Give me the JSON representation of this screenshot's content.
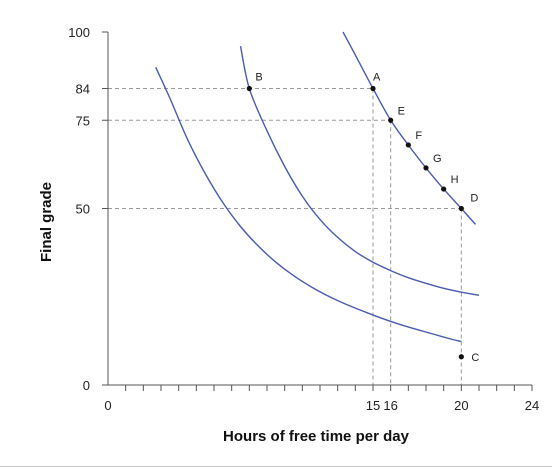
{
  "chart_data": {
    "type": "line",
    "title": "",
    "xlabel": "Hours of free time per day",
    "ylabel": "Final grade",
    "xlim": [
      0,
      24
    ],
    "ylim": [
      0,
      100
    ],
    "x_ticks": [
      0,
      15,
      16,
      20,
      24
    ],
    "x_tick_labels": [
      "0",
      "15",
      "16",
      "20",
      "24"
    ],
    "x_minor_ticks": [
      1,
      2,
      3,
      4,
      5,
      6,
      7,
      8,
      9,
      10,
      11,
      12,
      13,
      14,
      15,
      16,
      17,
      18,
      19,
      20,
      21,
      22,
      23,
      24
    ],
    "y_ticks": [
      0,
      50,
      75,
      84,
      100
    ],
    "y_tick_labels": [
      "0",
      "50",
      "75",
      "84",
      "100"
    ],
    "grid": false,
    "line_color": "#4a5bb0",
    "guide_color": "#9a9a9a",
    "series": [
      {
        "x": [
          2.7,
          3.5,
          4.5,
          5.5,
          6.5,
          7.5,
          8.5,
          9.5,
          10.5,
          11.5,
          12.5,
          13.5,
          14.5,
          15.5,
          16.5,
          17.5,
          18.5,
          19.5,
          20.0
        ],
        "y": [
          90.0,
          81.3,
          69.6,
          59.9,
          51.7,
          44.9,
          39.4,
          34.8,
          31.0,
          27.8,
          25.1,
          22.8,
          20.8,
          18.9,
          17.2,
          15.7,
          14.3,
          12.9,
          12.3
        ]
      },
      {
        "x": [
          7.5,
          8.0,
          9.0,
          10.0,
          11.0,
          12.0,
          13.0,
          14.0,
          15.0,
          16.0,
          17.0,
          18.0,
          19.0,
          20.0,
          21.0
        ],
        "y": [
          96.0,
          84.0,
          72.0,
          61.9,
          53.5,
          46.9,
          41.8,
          37.8,
          34.8,
          32.4,
          30.4,
          28.8,
          27.4,
          26.3,
          25.4
        ]
      },
      {
        "x": [
          13.3,
          14.0,
          15.0,
          16.0,
          17.0,
          18.0,
          19.0,
          20.0,
          20.8
        ],
        "y": [
          100.0,
          93.5,
          84.0,
          75.0,
          68.0,
          61.5,
          55.5,
          50.0,
          45.5
        ]
      }
    ],
    "points": [
      {
        "label": "A",
        "x": 15,
        "y": 84
      },
      {
        "label": "B",
        "x": 8,
        "y": 84
      },
      {
        "label": "C",
        "x": 20,
        "y": 8
      },
      {
        "label": "D",
        "x": 20,
        "y": 50
      },
      {
        "label": "E",
        "x": 16,
        "y": 75
      },
      {
        "label": "F",
        "x": 17,
        "y": 68
      },
      {
        "label": "G",
        "x": 18,
        "y": 61.5
      },
      {
        "label": "H",
        "x": 19,
        "y": 55.5
      }
    ]
  }
}
